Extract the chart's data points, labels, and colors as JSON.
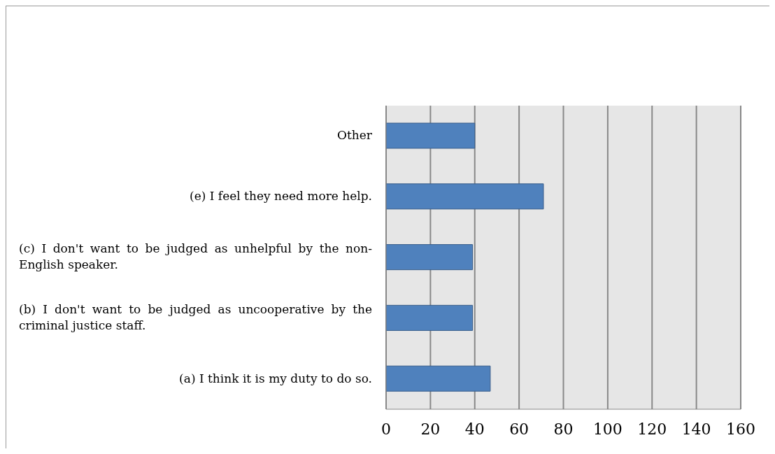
{
  "chart_data": {
    "type": "bar",
    "orientation": "horizontal",
    "categories": [
      "Other",
      "(e) I feel they need more help.",
      "(c) I don't want to be judged as unhelpful by the non-English speaker.",
      "(b) I don't want to be judged as uncooperative by the criminal justice staff.",
      "(a) I think it is my duty to do so."
    ],
    "values": [
      40,
      71,
      39,
      39,
      47
    ],
    "color": "#4f81bd",
    "xlim": [
      0,
      160
    ],
    "xticks": [
      0,
      20,
      40,
      60,
      80,
      100,
      120,
      140,
      160
    ],
    "grid": "x"
  }
}
